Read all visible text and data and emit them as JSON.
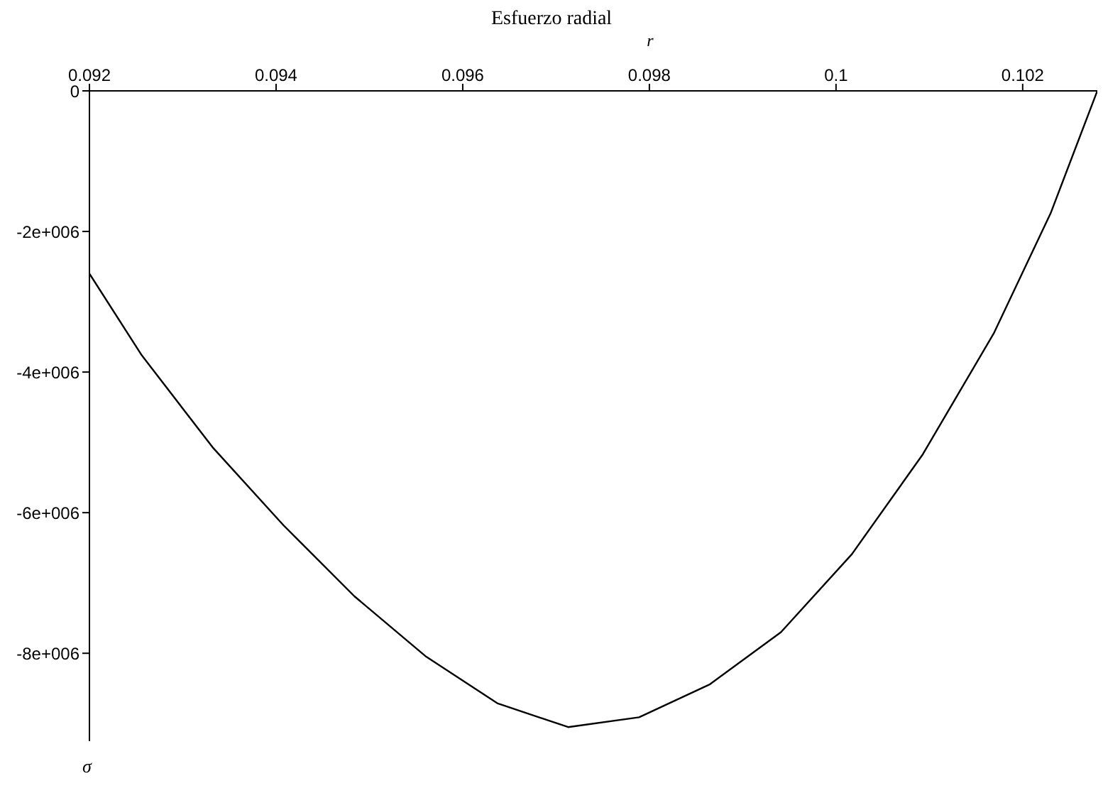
{
  "chart_data": {
    "type": "line",
    "title": "Esfuerzo radial",
    "xlabel": "r",
    "ylabel": "σ",
    "x": [
      0.092,
      0.09256,
      0.09332,
      0.09408,
      0.09484,
      0.0956,
      0.09637,
      0.09713,
      0.09789,
      0.09865,
      0.09941,
      0.10017,
      0.10093,
      0.10169,
      0.1023,
      0.1028
    ],
    "series": [
      {
        "color": "#000000",
        "values": [
          -2600000,
          -3760000,
          -5070000,
          -6180000,
          -7190000,
          -8040000,
          -8710000,
          -9050000,
          -8910000,
          -8440000,
          -7700000,
          -6590000,
          -5170000,
          -3450000,
          -1740000,
          0
        ]
      }
    ],
    "xlim": [
      0.092,
      0.1028
    ],
    "xticks": [
      {
        "value": 0.092,
        "label": "0.092"
      },
      {
        "value": 0.094,
        "label": "0.094"
      },
      {
        "value": 0.096,
        "label": "0.096"
      },
      {
        "value": 0.098,
        "label": "0.098"
      },
      {
        "value": 0.1,
        "label": "0.1"
      },
      {
        "value": 0.102,
        "label": "0.102"
      }
    ],
    "ylim": [
      -9250000,
      0
    ],
    "yticks": [
      0,
      {
        "value": -2000000,
        "label": "-2e+006"
      },
      {
        "value": -4000000,
        "label": "-4e+006"
      },
      {
        "value": -6000000,
        "label": "-6e+006"
      },
      {
        "value": -8000000,
        "label": "-8e+006"
      }
    ],
    "grid": false,
    "legend": false,
    "marker": "none",
    "line_style": "solid"
  }
}
